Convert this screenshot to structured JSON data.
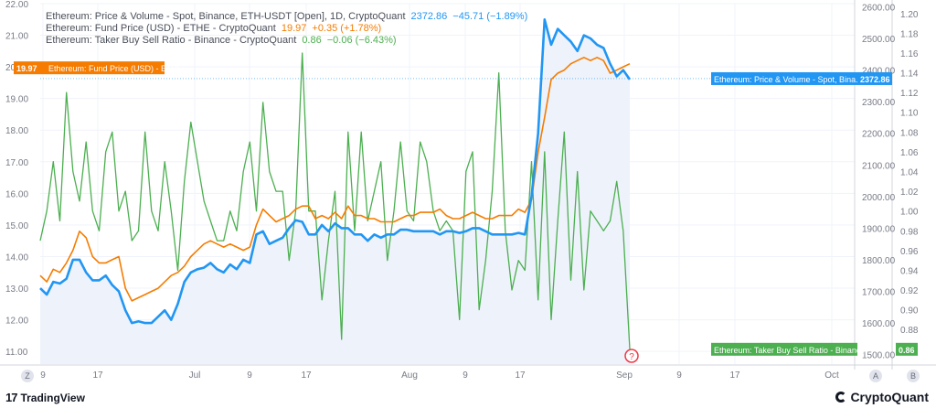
{
  "legend": {
    "eth": {
      "name": "Ethereum: Price & Volume - Spot, Binance, ETH-USDT [Open], 1D, CryptoQuant",
      "value": "2372.86",
      "change": "−45.71 (−1.89%)"
    },
    "fund": {
      "name": "Ethereum: Fund Price (USD) - ETHE - CryptoQuant",
      "value": "19.97",
      "change": "+0.35 (+1.78%)"
    },
    "ratio": {
      "name": "Ethereum: Taker Buy Sell Ratio - Binance - CryptoQuant",
      "value": "0.86",
      "change": "−0.06 (−6.43%)"
    }
  },
  "tags": {
    "fund_value": "19.97",
    "fund_label": "Ethereum: Fund Price (USD) - ETHE",
    "eth_label": "Ethereum: Price & Volume - Spot, Bina...",
    "eth_value": "2372.86",
    "ratio_label": "Ethereum: Taker Buy Sell Ratio - Binance",
    "ratio_value": "0.86"
  },
  "colors": {
    "eth": "#2196f3",
    "fund": "#f57c00",
    "ratio": "#4caf50",
    "area": "#eef2fb"
  },
  "axis_buttons": {
    "left": "Z",
    "a": "A",
    "b": "B"
  },
  "footer": {
    "tradingview": "TradingView",
    "cryptoquant": "CryptoQuant"
  },
  "chart_data": {
    "type": "line",
    "x_ticks": [
      "9",
      "17",
      "Jul",
      "9",
      "17",
      "Aug",
      "9",
      "17",
      "Sep",
      "9",
      "17",
      "Oct"
    ],
    "left_axis": {
      "ticks": [
        "22.00",
        "21.00",
        "20.00",
        "19.00",
        "18.00",
        "17.00",
        "16.00",
        "15.00",
        "14.00",
        "13.00",
        "12.00",
        "11.00"
      ],
      "range": [
        10.6,
        22.0
      ]
    },
    "mid_axis": {
      "ticks": [
        "2600.00",
        "2500.00",
        "2400.00",
        "2300.00",
        "2200.00",
        "2100.00",
        "2000.00",
        "1900.00",
        "1800.00",
        "1700.00",
        "1600.00",
        "1500.00"
      ],
      "range": [
        1470,
        2610
      ]
    },
    "right_axis": {
      "ticks": [
        "1.20",
        "1.18",
        "1.16",
        "1.14",
        "1.12",
        "1.10",
        "1.08",
        "1.06",
        "1.04",
        "1.02",
        "1.00",
        "0.98",
        "0.96",
        "0.94",
        "0.92",
        "0.90",
        "0.88",
        "0.86"
      ],
      "range": [
        0.845,
        1.21
      ]
    },
    "series": [
      {
        "name": "Ethereum: Price & Volume - Spot, Binance, ETH-USDT [Open], 1D, CryptoQuant",
        "axis": "mid",
        "values": [
          1710,
          1690,
          1730,
          1725,
          1740,
          1800,
          1800,
          1760,
          1735,
          1735,
          1750,
          1720,
          1700,
          1640,
          1600,
          1605,
          1600,
          1600,
          1620,
          1640,
          1610,
          1660,
          1730,
          1760,
          1770,
          1775,
          1790,
          1770,
          1760,
          1785,
          1770,
          1800,
          1790,
          1880,
          1890,
          1850,
          1860,
          1870,
          1900,
          1925,
          1920,
          1880,
          1880,
          1910,
          1890,
          1915,
          1900,
          1900,
          1880,
          1880,
          1860,
          1880,
          1870,
          1880,
          1880,
          1895,
          1895,
          1890,
          1890,
          1890,
          1890,
          1880,
          1890,
          1890,
          1885,
          1890,
          1900,
          1900,
          1890,
          1880,
          1880,
          1880,
          1880,
          1885,
          1880,
          2000,
          2200,
          2560,
          2480,
          2530,
          2510,
          2490,
          2460,
          2510,
          2500,
          2480,
          2470,
          2420,
          2380,
          2400,
          2370
        ]
      },
      {
        "name": "Ethereum: Fund Price (USD) - ETHE - CryptoQuant",
        "axis": "left",
        "values": [
          13.4,
          13.2,
          13.6,
          13.5,
          13.8,
          14.2,
          14.8,
          14.6,
          14.0,
          13.8,
          13.8,
          13.9,
          14.0,
          13.0,
          12.6,
          12.7,
          12.8,
          12.9,
          13.0,
          13.2,
          13.4,
          13.5,
          13.7,
          14.0,
          14.2,
          14.4,
          14.5,
          14.4,
          14.3,
          14.4,
          14.3,
          14.2,
          14.3,
          15.0,
          15.5,
          15.3,
          15.1,
          15.2,
          15.3,
          15.5,
          15.6,
          15.6,
          15.2,
          15.3,
          15.2,
          15.4,
          15.2,
          15.6,
          15.3,
          15.3,
          15.2,
          15.2,
          15.1,
          15.1,
          15.1,
          15.2,
          15.3,
          15.3,
          15.4,
          15.4,
          15.4,
          15.5,
          15.3,
          15.2,
          15.2,
          15.3,
          15.4,
          15.3,
          15.2,
          15.2,
          15.3,
          15.3,
          15.3,
          15.5,
          15.4,
          15.8,
          17.3,
          18.4,
          19.6,
          19.8,
          19.9,
          20.1,
          20.2,
          20.3,
          20.2,
          20.3,
          20.2,
          19.8,
          19.9,
          20.0,
          20.1
        ]
      },
      {
        "name": "Ethereum: Taker Buy Sell Ratio - Binance - CryptoQuant",
        "axis": "right",
        "values": [
          0.97,
          1.0,
          1.05,
          0.99,
          1.12,
          1.04,
          1.01,
          1.07,
          1.0,
          0.98,
          1.06,
          1.08,
          1.0,
          1.02,
          0.97,
          0.98,
          1.08,
          1.0,
          0.98,
          1.05,
          1.0,
          0.94,
          1.03,
          1.09,
          1.05,
          1.01,
          0.99,
          0.97,
          0.97,
          1.0,
          0.98,
          1.04,
          1.07,
          1.0,
          1.11,
          1.04,
          1.02,
          1.02,
          0.95,
          1.0,
          1.16,
          1.0,
          1.0,
          0.91,
          0.97,
          1.02,
          0.87,
          1.08,
          0.98,
          1.08,
          0.99,
          1.02,
          1.05,
          0.95,
          1.0,
          1.07,
          1.0,
          0.99,
          1.07,
          1.05,
          1.0,
          0.98,
          0.99,
          0.98,
          0.89,
          1.04,
          1.06,
          0.9,
          0.95,
          1.02,
          1.14,
          0.98,
          0.92,
          0.95,
          0.94,
          1.05,
          0.91,
          1.06,
          0.89,
          0.99,
          1.08,
          0.93,
          1.04,
          0.92,
          1.0,
          0.99,
          0.98,
          0.99,
          1.03,
          0.98,
          0.86
        ]
      }
    ],
    "last_values": {
      "eth": 2372.86,
      "fund": 19.97,
      "ratio": 0.86
    }
  }
}
